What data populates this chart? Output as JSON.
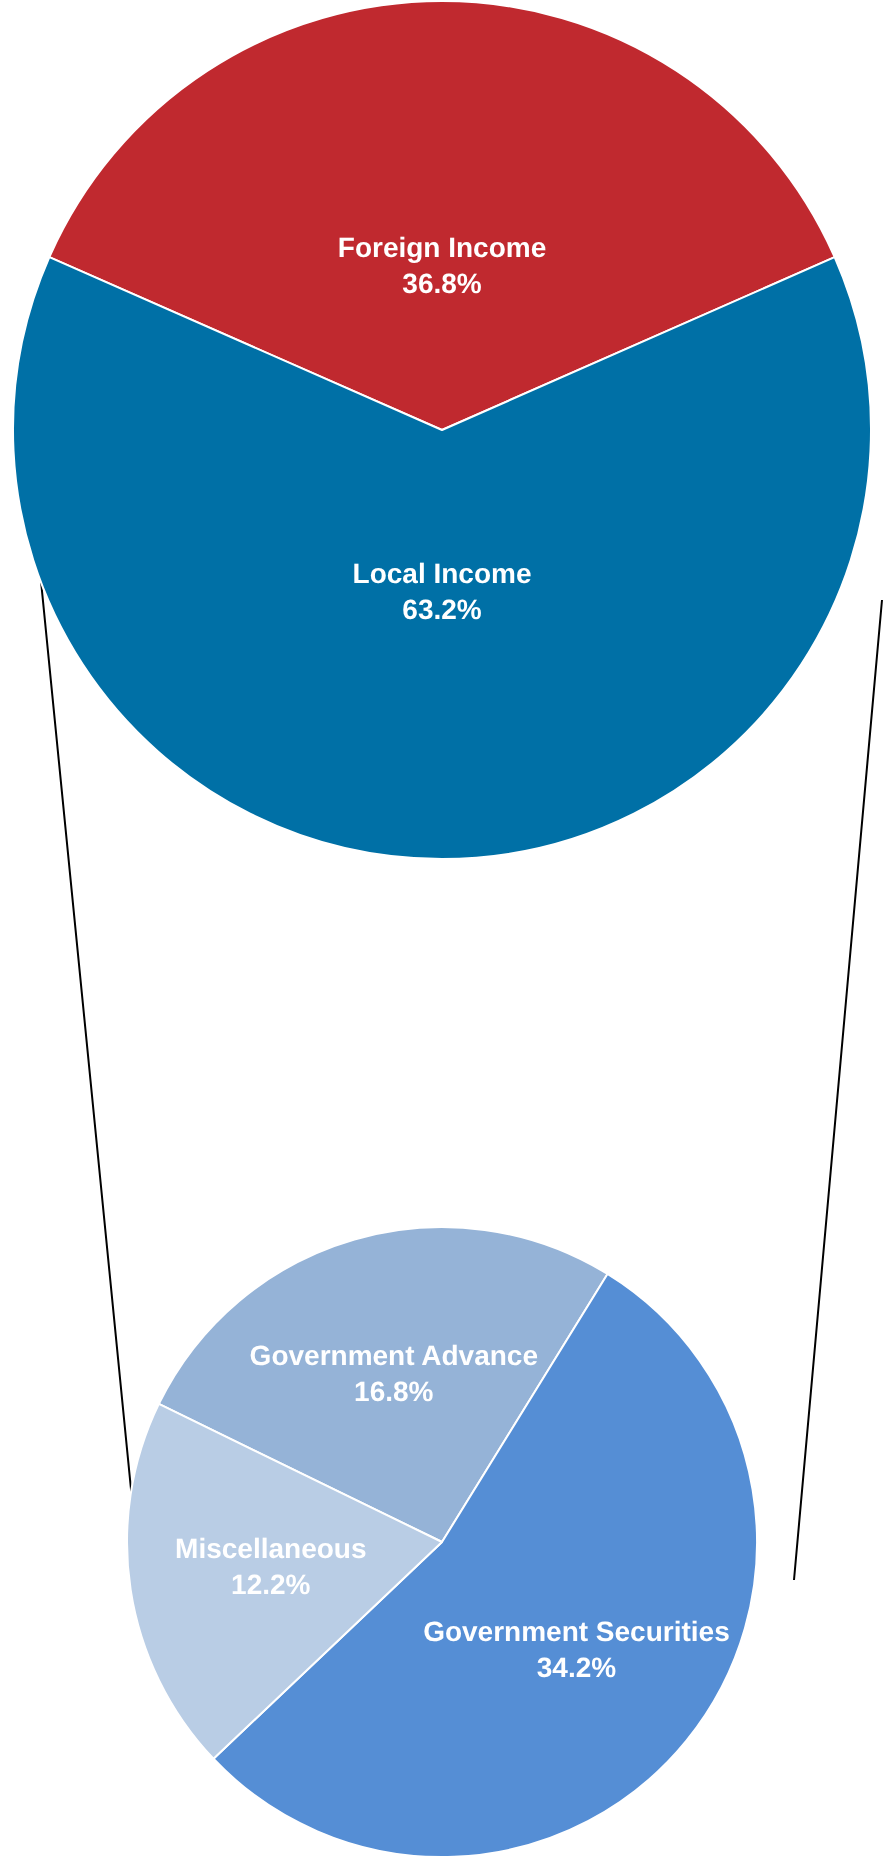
{
  "chart_data": [
    {
      "type": "pie",
      "categories": [
        "Foreign Income",
        "Local Income"
      ],
      "values": [
        36.8,
        63.2
      ],
      "value_labels": [
        "36.8%",
        "63.2%"
      ],
      "colors": [
        "#c0292f",
        "#0070a6"
      ],
      "legend": false
    },
    {
      "type": "pie",
      "categories": [
        "Government Advance",
        "Government Securities",
        "Miscellaneous"
      ],
      "values": [
        16.8,
        34.2,
        12.2
      ],
      "value_labels": [
        "16.8%",
        "34.2%",
        "12.2%"
      ],
      "colors": [
        "#95b3d7",
        "#558ed5",
        "#b9cde5"
      ],
      "legend": false
    }
  ]
}
